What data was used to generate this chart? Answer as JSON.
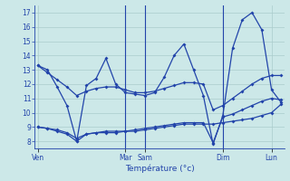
{
  "background_color": "#cce8e8",
  "grid_color": "#aacccc",
  "line_color": "#2244aa",
  "xlabel": "Température (°c)",
  "ylim": [
    7.5,
    17.5
  ],
  "yticks": [
    8,
    9,
    10,
    11,
    12,
    13,
    14,
    15,
    16,
    17
  ],
  "x_tick_positions": [
    0,
    9,
    11,
    19,
    24
  ],
  "x_tick_labels": [
    "Ven",
    "Mar",
    "Sam",
    "Dim",
    "Lun"
  ],
  "vlines": [
    9,
    11,
    19
  ],
  "series": [
    [
      13.3,
      13.0,
      11.8,
      10.5,
      8.0,
      11.9,
      12.4,
      13.8,
      12.0,
      11.4,
      11.3,
      11.2,
      11.4,
      12.5,
      14.0,
      14.8,
      13.0,
      11.2,
      7.8,
      9.8,
      14.5,
      16.5,
      17.0,
      15.8,
      11.6,
      10.7
    ],
    [
      9.0,
      8.9,
      8.7,
      8.5,
      8.0,
      8.5,
      8.6,
      8.7,
      8.7,
      8.7,
      8.7,
      8.8,
      8.9,
      9.0,
      9.1,
      9.2,
      9.2,
      9.2,
      9.2,
      9.3,
      9.4,
      9.5,
      9.6,
      9.8,
      10.0,
      10.6
    ],
    [
      9.0,
      8.9,
      8.8,
      8.6,
      8.2,
      8.5,
      8.6,
      8.6,
      8.6,
      8.7,
      8.8,
      8.9,
      9.0,
      9.1,
      9.2,
      9.3,
      9.3,
      9.3,
      7.9,
      9.7,
      9.9,
      10.2,
      10.5,
      10.8,
      11.0,
      10.9
    ],
    [
      13.3,
      12.8,
      12.3,
      11.8,
      11.2,
      11.5,
      11.7,
      11.8,
      11.8,
      11.6,
      11.4,
      11.4,
      11.5,
      11.7,
      11.9,
      12.1,
      12.1,
      12.0,
      10.2,
      10.5,
      11.0,
      11.5,
      12.0,
      12.4,
      12.6,
      12.6
    ]
  ]
}
